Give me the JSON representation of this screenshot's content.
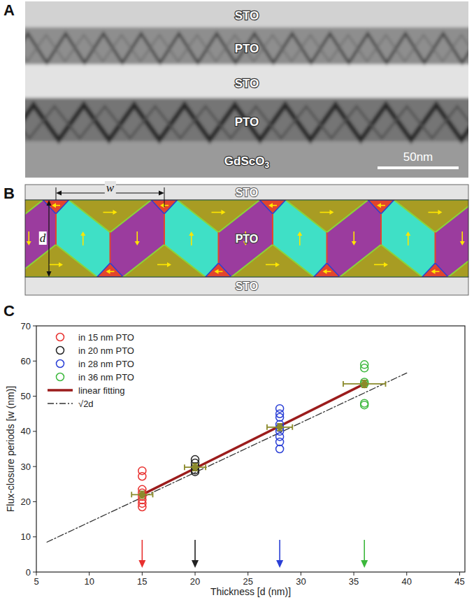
{
  "panel_a": {
    "letter": "A",
    "layers": [
      {
        "text": "STO"
      },
      {
        "text": "PTO"
      },
      {
        "text": "STO"
      },
      {
        "text": "PTO"
      },
      {
        "text": "GdScO",
        "subscript": "3"
      }
    ],
    "scale_bar": "50nm"
  },
  "panel_b": {
    "letter": "B",
    "layers": [
      "STO",
      "PTO",
      "STO"
    ],
    "period_label": "w",
    "thickness_label": "d"
  },
  "chart_data": {
    "letter": "C",
    "type": "scatter",
    "x_label": "Thickness [d (nm)]",
    "y_label": "Flux-closure periods [w (nm)]",
    "xlim": [
      5,
      45.5
    ],
    "xticks": [
      5,
      10,
      15,
      20,
      25,
      30,
      35,
      40,
      45
    ],
    "ylim": [
      0,
      70
    ],
    "yticks": [
      0,
      10,
      20,
      30,
      40,
      50,
      60,
      70
    ],
    "grid": false,
    "legend": "upper left",
    "series": [
      {
        "name": "in 15 nm PTO",
        "type": "scatter",
        "marker": "open-circle",
        "color": "#e8312f",
        "x": [
          15,
          15,
          15,
          15,
          15,
          15,
          15,
          15
        ],
        "values": [
          28.8,
          27.2,
          23.5,
          22.5,
          21.5,
          20.5,
          19.5,
          18.5
        ]
      },
      {
        "name": "in 20 nm PTO",
        "type": "scatter",
        "marker": "open-circle",
        "color": "#222222",
        "x": [
          20,
          20,
          20,
          20,
          20
        ],
        "values": [
          32,
          31,
          30,
          29,
          28.5
        ]
      },
      {
        "name": "in 28 nm PTO",
        "type": "scatter",
        "marker": "open-circle",
        "color": "#2a3fd6",
        "x": [
          28,
          28,
          28,
          28,
          28,
          28,
          28,
          28,
          28
        ],
        "values": [
          46.5,
          45,
          44,
          42,
          41,
          40,
          38.5,
          37,
          35
        ]
      },
      {
        "name": "in 36 nm PTO",
        "type": "scatter",
        "marker": "open-circle",
        "color": "#3cb83c",
        "x": [
          36,
          36,
          36,
          36,
          36,
          36
        ],
        "values": [
          59,
          58,
          54,
          53.5,
          48,
          47.5
        ]
      },
      {
        "name": "linear fitting",
        "type": "line",
        "line_style": "solid",
        "color": "#9b1c1c",
        "x": [
          15,
          36
        ],
        "values": [
          22,
          53.5
        ]
      },
      {
        "name": "√2d",
        "type": "line",
        "line_style": "dashdot",
        "color": "#333333",
        "x": [
          6,
          40
        ],
        "values": [
          8.5,
          56.6
        ]
      },
      {
        "type": "errorbar",
        "marker": "filled-circle",
        "color": "#8b8a2b",
        "x": [
          15,
          20,
          28,
          36
        ],
        "values": [
          22,
          29.8,
          41.2,
          53.5
        ],
        "x_error": [
          1,
          1,
          1.2,
          2
        ],
        "error": [
          1,
          1,
          1,
          1
        ]
      }
    ],
    "arrows": {
      "x": [
        15,
        20,
        28,
        36
      ],
      "colors": [
        "#e8312f",
        "#222222",
        "#2a3fd6",
        "#3cb83c"
      ]
    }
  }
}
